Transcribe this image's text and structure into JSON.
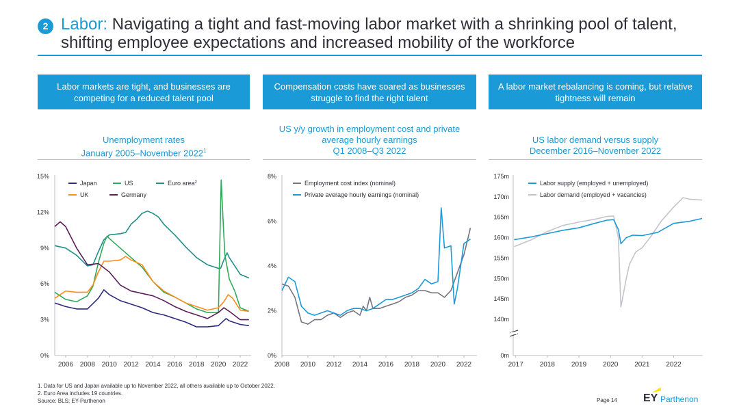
{
  "header": {
    "number": "2",
    "title_accent": "Labor:",
    "title_rest": " Navigating a tight and fast-moving labor market with a shrinking pool of talent, shifting employee expectations and increased mobility of the workforce"
  },
  "banners": [
    "Labor markets are tight, and businesses are competing for a reduced talent pool",
    "Compensation costs have soared as businesses struggle to find the right talent",
    "A labor market rebalancing is coming, but relative tightness will remain"
  ],
  "chart_titles": [
    {
      "title": "Unemployment rates",
      "sub": "January 2005–November 2022",
      "sup": "1"
    },
    {
      "title": "US y/y growth in employment cost and private average hourly earnings",
      "sub": "Q1 2008–Q3 2022"
    },
    {
      "title": "US labor demand versus supply",
      "sub": "December 2016–November 2022"
    }
  ],
  "colors": {
    "accent": "#1a9ad6",
    "navy": "#2a2a7e",
    "green": "#2eaa5a",
    "teal": "#1f8f8a",
    "orange": "#ff8c1a",
    "purple": "#5a1f5a",
    "gray": "#747480",
    "lightgray": "#c4c4cd",
    "blue": "#1a9ad6"
  },
  "chart_data": [
    {
      "type": "line",
      "ylim": [
        0,
        15
      ],
      "yticks": [
        "0%",
        "3%",
        "6%",
        "9%",
        "12%",
        "15%"
      ],
      "xticks": [
        "2006",
        "2008",
        "2010",
        "2012",
        "2014",
        "2016",
        "2018",
        "2020",
        "2022"
      ],
      "legend": [
        {
          "name": "Japan",
          "color": "#2a2a7e"
        },
        {
          "name": "US",
          "color": "#2eaa5a"
        },
        {
          "name": "Euro area",
          "sup": "2",
          "color": "#1f8f8a"
        },
        {
          "name": "UK",
          "color": "#ff8c1a"
        },
        {
          "name": "Germany",
          "color": "#5a1f5a"
        }
      ],
      "series": [
        {
          "name": "Euro area",
          "color": "#1f8f8a",
          "x": [
            2005.0,
            2006.0,
            2007.0,
            2008.0,
            2008.5,
            2009.0,
            2009.5,
            2010.0,
            2011.0,
            2011.5,
            2012.0,
            2012.5,
            2013.0,
            2013.5,
            2014.0,
            2014.5,
            2015.0,
            2016.0,
            2017.0,
            2018.0,
            2019.0,
            2020.0,
            2020.2,
            2020.5,
            2020.8,
            2021.0,
            2022.0,
            2022.8
          ],
          "y": [
            9.2,
            9.0,
            8.4,
            7.5,
            7.6,
            8.7,
            9.7,
            10.1,
            10.2,
            10.3,
            11.0,
            11.4,
            11.9,
            12.1,
            11.9,
            11.6,
            11.0,
            10.1,
            9.1,
            8.2,
            7.6,
            7.3,
            7.3,
            8.0,
            8.6,
            8.2,
            6.8,
            6.5
          ]
        },
        {
          "name": "US",
          "color": "#2eaa5a",
          "x": [
            2005.0,
            2006.0,
            2007.0,
            2008.0,
            2008.5,
            2009.0,
            2009.5,
            2009.8,
            2010.0,
            2011.0,
            2012.0,
            2013.0,
            2014.0,
            2015.0,
            2016.0,
            2017.0,
            2018.0,
            2019.0,
            2020.0,
            2020.25,
            2020.33,
            2020.45,
            2020.6,
            2021.0,
            2021.5,
            2022.0,
            2022.8
          ],
          "y": [
            5.3,
            4.7,
            4.5,
            5.0,
            5.8,
            7.8,
            9.4,
            10.0,
            9.8,
            9.0,
            8.2,
            7.4,
            6.2,
            5.3,
            4.9,
            4.4,
            3.9,
            3.6,
            3.6,
            14.7,
            13.3,
            11.0,
            8.4,
            6.4,
            5.4,
            4.0,
            3.7
          ]
        },
        {
          "name": "UK",
          "color": "#ff8c1a",
          "x": [
            2005.0,
            2006.0,
            2007.0,
            2008.0,
            2008.5,
            2009.0,
            2009.5,
            2010.0,
            2011.0,
            2011.5,
            2012.0,
            2013.0,
            2014.0,
            2015.0,
            2016.0,
            2017.0,
            2018.0,
            2019.0,
            2020.0,
            2020.5,
            2020.9,
            2021.3,
            2022.0,
            2022.8
          ],
          "y": [
            4.8,
            5.4,
            5.3,
            5.3,
            5.9,
            7.0,
            7.9,
            7.9,
            8.0,
            8.3,
            8.0,
            7.6,
            6.2,
            5.4,
            4.9,
            4.4,
            4.1,
            3.8,
            4.0,
            4.5,
            5.1,
            4.8,
            3.8,
            3.7
          ]
        },
        {
          "name": "Germany",
          "color": "#5a1f5a",
          "x": [
            2005.0,
            2005.5,
            2006.0,
            2007.0,
            2008.0,
            2009.0,
            2010.0,
            2011.0,
            2012.0,
            2013.0,
            2014.0,
            2015.0,
            2016.0,
            2017.0,
            2018.0,
            2019.0,
            2020.0,
            2020.5,
            2021.0,
            2022.0,
            2022.8
          ],
          "y": [
            10.8,
            11.2,
            10.8,
            9.0,
            7.6,
            7.7,
            7.0,
            5.9,
            5.4,
            5.2,
            5.0,
            4.6,
            4.1,
            3.7,
            3.4,
            3.1,
            3.6,
            4.0,
            3.7,
            3.0,
            3.0
          ]
        },
        {
          "name": "Japan",
          "color": "#2a2a7e",
          "x": [
            2005.0,
            2006.0,
            2007.0,
            2008.0,
            2009.0,
            2009.5,
            2010.0,
            2011.0,
            2012.0,
            2013.0,
            2014.0,
            2015.0,
            2016.0,
            2017.0,
            2018.0,
            2019.0,
            2020.0,
            2020.7,
            2021.0,
            2022.0,
            2022.8
          ],
          "y": [
            4.4,
            4.1,
            3.9,
            3.9,
            4.8,
            5.5,
            5.1,
            4.6,
            4.3,
            4.0,
            3.6,
            3.4,
            3.1,
            2.8,
            2.4,
            2.4,
            2.5,
            3.1,
            2.9,
            2.6,
            2.5
          ]
        }
      ]
    },
    {
      "type": "line",
      "ylim": [
        0,
        8
      ],
      "yticks": [
        "0%",
        "2%",
        "4%",
        "6%",
        "8%"
      ],
      "xticks": [
        "2008",
        "2010",
        "2012",
        "2014",
        "2016",
        "2018",
        "2020",
        "2022"
      ],
      "legend": [
        {
          "name": "Employment cost index (nominal)",
          "color": "#747480"
        },
        {
          "name": "Private average hourly earnings (nominal)",
          "color": "#1a9ad6"
        }
      ],
      "series": [
        {
          "name": "Employment cost index (nominal)",
          "color": "#747480",
          "x": [
            2008.0,
            2008.5,
            2009.0,
            2009.5,
            2010.0,
            2010.5,
            2011.0,
            2011.5,
            2012.0,
            2012.5,
            2013.0,
            2013.5,
            2014.0,
            2014.25,
            2014.5,
            2014.75,
            2015.0,
            2015.5,
            2016.0,
            2016.5,
            2017.0,
            2017.5,
            2018.0,
            2018.5,
            2019.0,
            2019.5,
            2020.0,
            2020.5,
            2021.0,
            2021.5,
            2022.0,
            2022.25,
            2022.5
          ],
          "y": [
            3.2,
            3.1,
            2.6,
            1.5,
            1.4,
            1.6,
            1.6,
            1.8,
            1.9,
            1.7,
            1.9,
            2.0,
            1.8,
            2.2,
            2.0,
            2.6,
            2.1,
            2.1,
            2.2,
            2.3,
            2.4,
            2.6,
            2.7,
            2.9,
            2.9,
            2.8,
            2.8,
            2.6,
            2.9,
            3.7,
            4.5,
            5.1,
            5.7
          ]
        },
        {
          "name": "Private average hourly earnings (nominal)",
          "color": "#1a9ad6",
          "x": [
            2008.0,
            2008.5,
            2009.0,
            2009.5,
            2010.0,
            2010.5,
            2011.0,
            2011.5,
            2012.0,
            2012.5,
            2013.0,
            2013.5,
            2014.0,
            2014.5,
            2015.0,
            2015.5,
            2016.0,
            2016.5,
            2017.0,
            2017.5,
            2018.0,
            2018.5,
            2019.0,
            2019.5,
            2020.0,
            2020.25,
            2020.5,
            2021.0,
            2021.25,
            2021.5,
            2022.0,
            2022.5
          ],
          "y": [
            2.9,
            3.5,
            3.3,
            2.2,
            1.9,
            1.8,
            1.9,
            2.0,
            1.9,
            1.8,
            2.0,
            2.1,
            2.1,
            2.0,
            2.1,
            2.3,
            2.5,
            2.5,
            2.6,
            2.7,
            2.8,
            3.0,
            3.4,
            3.2,
            3.3,
            6.6,
            4.8,
            4.9,
            2.3,
            3.0,
            5.0,
            5.2
          ]
        }
      ]
    },
    {
      "type": "line",
      "ylim": [
        140,
        175
      ],
      "axis_break": true,
      "yticks": [
        "0m",
        "140m",
        "145m",
        "150m",
        "155m",
        "160m",
        "165m",
        "170m",
        "175m"
      ],
      "xticks": [
        "2017",
        "2018",
        "2019",
        "2020",
        "2021",
        "2022"
      ],
      "legend": [
        {
          "name": "Labor supply (employed + unemployed)",
          "color": "#1a9ad6"
        },
        {
          "name": "Labor demand (employed + vacancies)",
          "color": "#c4c4cd"
        }
      ],
      "series": [
        {
          "name": "Labor demand (employed + vacancies)",
          "color": "#c4c4cd",
          "x": [
            2016.95,
            2017.5,
            2018.0,
            2018.5,
            2019.0,
            2019.5,
            2019.9,
            2020.1,
            2020.25,
            2020.33,
            2020.5,
            2020.6,
            2020.8,
            2021.0,
            2021.3,
            2021.6,
            2022.0,
            2022.3,
            2022.5,
            2022.9
          ],
          "y": [
            157.8,
            159.5,
            161.5,
            163.0,
            163.8,
            164.5,
            165.2,
            165.3,
            160.0,
            143.0,
            150.0,
            153.5,
            156.5,
            157.5,
            160.5,
            164.0,
            167.5,
            169.8,
            169.4,
            169.2
          ]
        },
        {
          "name": "Labor supply (employed + unemployed)",
          "color": "#1a9ad6",
          "x": [
            2016.95,
            2017.5,
            2018.0,
            2018.5,
            2019.0,
            2019.5,
            2019.9,
            2020.1,
            2020.25,
            2020.33,
            2020.5,
            2020.7,
            2021.0,
            2021.5,
            2022.0,
            2022.5,
            2022.9
          ],
          "y": [
            159.5,
            160.2,
            161.0,
            161.8,
            162.4,
            163.5,
            164.3,
            164.4,
            162.0,
            158.5,
            160.0,
            160.6,
            160.5,
            161.3,
            163.5,
            164.0,
            164.7
          ]
        }
      ]
    }
  ],
  "footnotes": [
    "1.    Data for US and Japan available up to November 2022, all others available up to October 2022.",
    "2.    Euro Area includes 19 countries.",
    "Source: BLS; EY-Parthenon"
  ],
  "page": "Page 14",
  "logo": {
    "ey": "EY",
    "name": "Parthenon"
  }
}
